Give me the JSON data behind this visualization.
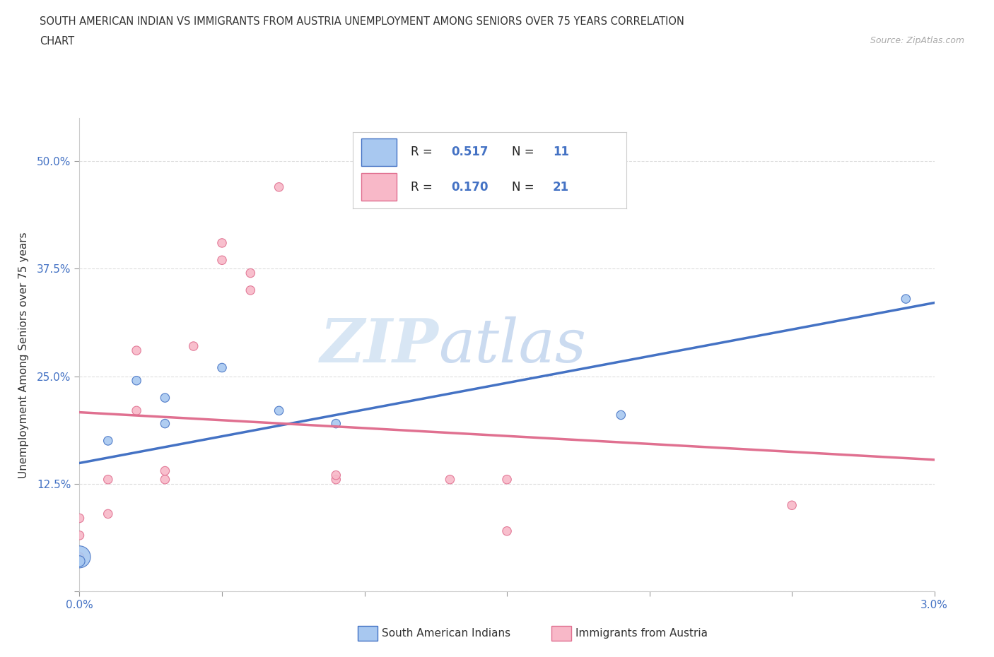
{
  "title_line1": "SOUTH AMERICAN INDIAN VS IMMIGRANTS FROM AUSTRIA UNEMPLOYMENT AMONG SENIORS OVER 75 YEARS CORRELATION",
  "title_line2": "CHART",
  "source_text": "Source: ZipAtlas.com",
  "ylabel": "Unemployment Among Seniors over 75 years",
  "xlim": [
    0.0,
    0.03
  ],
  "ylim": [
    0.0,
    0.55
  ],
  "xticks": [
    0.0,
    0.005,
    0.01,
    0.015,
    0.02,
    0.025,
    0.03
  ],
  "xticklabels": [
    "0.0%",
    "",
    "",
    "",
    "",
    "",
    "3.0%"
  ],
  "yticks": [
    0.0,
    0.125,
    0.25,
    0.375,
    0.5
  ],
  "yticklabels": [
    "",
    "12.5%",
    "25.0%",
    "37.5%",
    "50.0%"
  ],
  "blue_color": "#A8C8F0",
  "pink_color": "#F8B8C8",
  "blue_line_color": "#4472C4",
  "pink_line_color": "#E07090",
  "R_blue": "0.517",
  "N_blue": "11",
  "R_pink": "0.170",
  "N_pink": "21",
  "legend_label_blue": "South American Indians",
  "legend_label_pink": "Immigrants from Austria",
  "watermark_zip": "ZIP",
  "watermark_atlas": "atlas",
  "blue_scatter_x": [
    0.0,
    0.0,
    0.001,
    0.002,
    0.003,
    0.003,
    0.005,
    0.007,
    0.009,
    0.019,
    0.029
  ],
  "blue_scatter_y": [
    0.04,
    0.035,
    0.175,
    0.245,
    0.225,
    0.195,
    0.26,
    0.21,
    0.195,
    0.205,
    0.34
  ],
  "blue_scatter_sizes": [
    500,
    120,
    80,
    80,
    80,
    80,
    80,
    80,
    80,
    80,
    80
  ],
  "pink_scatter_x": [
    0.0,
    0.0,
    0.0,
    0.001,
    0.001,
    0.002,
    0.002,
    0.003,
    0.003,
    0.004,
    0.005,
    0.005,
    0.006,
    0.006,
    0.007,
    0.009,
    0.009,
    0.013,
    0.015,
    0.015,
    0.025
  ],
  "pink_scatter_y": [
    0.04,
    0.085,
    0.065,
    0.13,
    0.09,
    0.28,
    0.21,
    0.13,
    0.14,
    0.285,
    0.385,
    0.405,
    0.37,
    0.35,
    0.47,
    0.13,
    0.135,
    0.13,
    0.13,
    0.07,
    0.1
  ],
  "pink_scatter_sizes": [
    80,
    80,
    80,
    80,
    80,
    80,
    80,
    80,
    80,
    80,
    80,
    80,
    80,
    80,
    80,
    80,
    80,
    80,
    80,
    80,
    80
  ],
  "background_color": "#FFFFFF",
  "grid_color": "#DDDDDD",
  "tick_label_color": "#4472C4",
  "text_color": "#333333",
  "source_color": "#AAAAAA"
}
